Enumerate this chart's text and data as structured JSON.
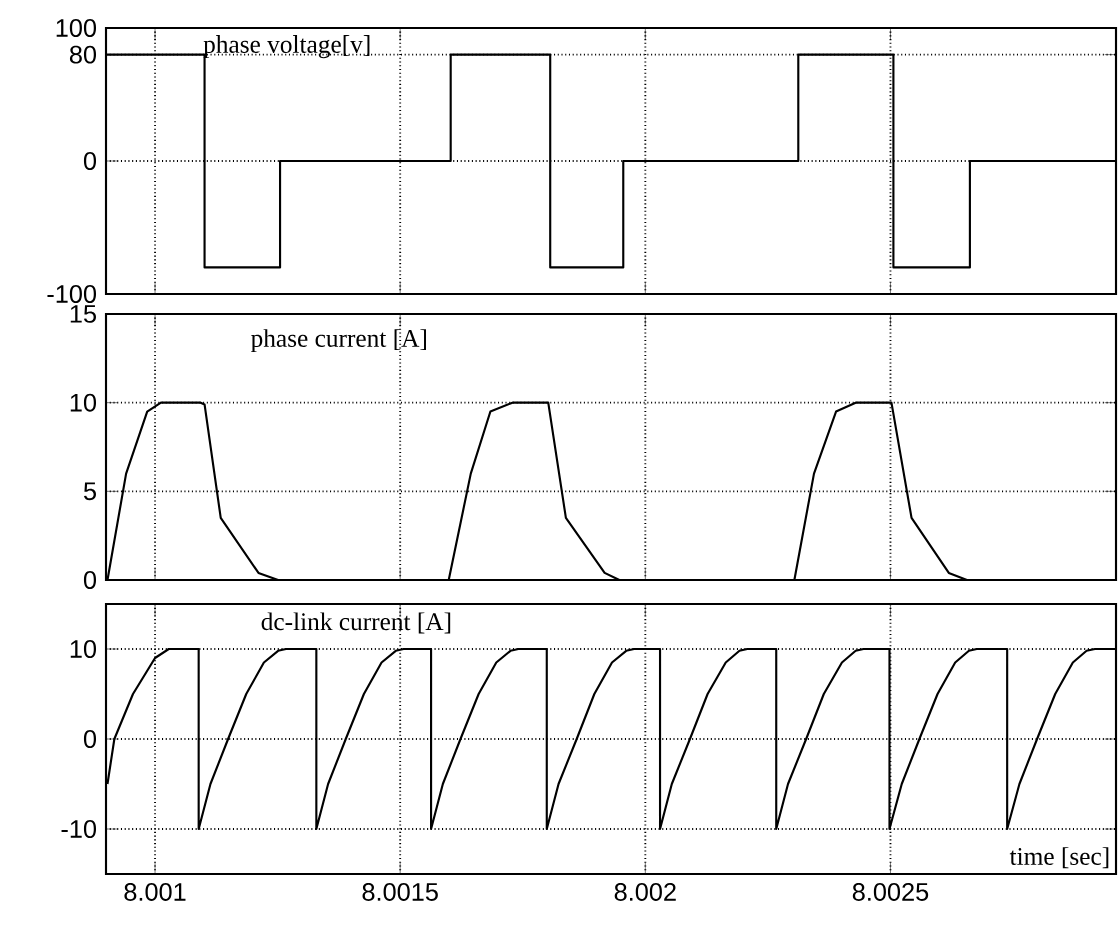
{
  "chart_data": [
    {
      "type": "step",
      "title": "phase voltage[v]",
      "xlim": [
        8.0009,
        8.00296
      ],
      "xticks": [
        8.001,
        8.0015,
        8.002,
        8.0025
      ],
      "ylim": [
        -100,
        100
      ],
      "yticks": [
        -100,
        0,
        80,
        100
      ],
      "grid": true,
      "tick_labels": "y",
      "color": "#000000",
      "x": [
        8.0009,
        8.001101,
        8.001255,
        8.001603,
        8.001806,
        8.001955,
        8.002312,
        8.002506,
        8.002662,
        8.00296
      ],
      "values": [
        80,
        -80,
        0,
        80,
        -80,
        0,
        80,
        -80,
        0,
        0
      ]
    },
    {
      "type": "line",
      "title": "phase current [A]",
      "xlim": [
        8.0009,
        8.00296
      ],
      "xticks": [
        8.001,
        8.0015,
        8.002,
        8.0025
      ],
      "ylim": [
        0,
        15
      ],
      "yticks": [
        0,
        5,
        10,
        15
      ],
      "grid": true,
      "tick_labels": "y",
      "color": "#000000",
      "x": [
        8.000903,
        8.000941,
        8.000984,
        8.001012,
        8.001093,
        8.001101,
        8.001134,
        8.001211,
        8.001251,
        8.001599,
        8.001644,
        8.001684,
        8.001729,
        8.001802,
        8.001838,
        8.001917,
        8.001947,
        8.002304,
        8.002344,
        8.002389,
        8.002429,
        8.002502,
        8.002543,
        8.002619,
        8.002656,
        8.00296
      ],
      "values": [
        0,
        6,
        9.5,
        10,
        10,
        9.9,
        3.5,
        0.4,
        0,
        0,
        6,
        9.5,
        10,
        10,
        3.5,
        0.4,
        0,
        0,
        6,
        9.5,
        10,
        10,
        3.5,
        0.4,
        0,
        0
      ]
    },
    {
      "type": "line",
      "title": "dc-link current [A]",
      "xlabel": "time [sec]",
      "xlim": [
        8.0009,
        8.00296
      ],
      "xticks": [
        8.001,
        8.0015,
        8.002,
        8.0025
      ],
      "ylim": [
        -15,
        15
      ],
      "yticks": [
        -10,
        0,
        10
      ],
      "grid": true,
      "color": "#000000",
      "x": [
        8.000903,
        8.000917,
        8.000955,
        8.001,
        8.001028,
        8.001089,
        8.001089,
        8.001113,
        8.001149,
        8.001186,
        8.001222,
        8.001251,
        8.001267,
        8.001329,
        8.001329,
        8.001353,
        8.001389,
        8.001426,
        8.001462,
        8.001491,
        8.001507,
        8.001563,
        8.001563,
        8.001587,
        8.001623,
        8.00166,
        8.001696,
        8.001725,
        8.001741,
        8.001799,
        8.001799,
        8.001823,
        8.00186,
        8.001896,
        8.001932,
        8.001961,
        8.001977,
        8.00203,
        8.00203,
        8.002054,
        8.002091,
        8.002127,
        8.002164,
        8.002192,
        8.002208,
        8.002267,
        8.002267,
        8.002291,
        8.002328,
        8.002364,
        8.002401,
        8.002429,
        8.002445,
        8.002498,
        8.002498,
        8.002523,
        8.002559,
        8.002596,
        8.002632,
        8.00266,
        8.002676,
        8.002738,
        8.002738,
        8.002763,
        8.002799,
        8.002836,
        8.002872,
        8.0029,
        8.002917,
        8.00296
      ],
      "values": [
        -5,
        0,
        5,
        9,
        10,
        10,
        -10,
        -5,
        0,
        5,
        8.5,
        9.8,
        10,
        10,
        -10,
        -5,
        0,
        5,
        8.5,
        9.8,
        10,
        10,
        -10,
        -5,
        0,
        5,
        8.5,
        9.8,
        10,
        10,
        -10,
        -5,
        0,
        5,
        8.5,
        9.8,
        10,
        10,
        -10,
        -5,
        0,
        5,
        8.5,
        9.8,
        10,
        10,
        -10,
        -5,
        0,
        5,
        8.5,
        9.8,
        10,
        10,
        -10,
        -5,
        0,
        5,
        8.5,
        9.8,
        10,
        10,
        -10,
        -5,
        0,
        5,
        8.5,
        9.8,
        10,
        10
      ]
    }
  ]
}
